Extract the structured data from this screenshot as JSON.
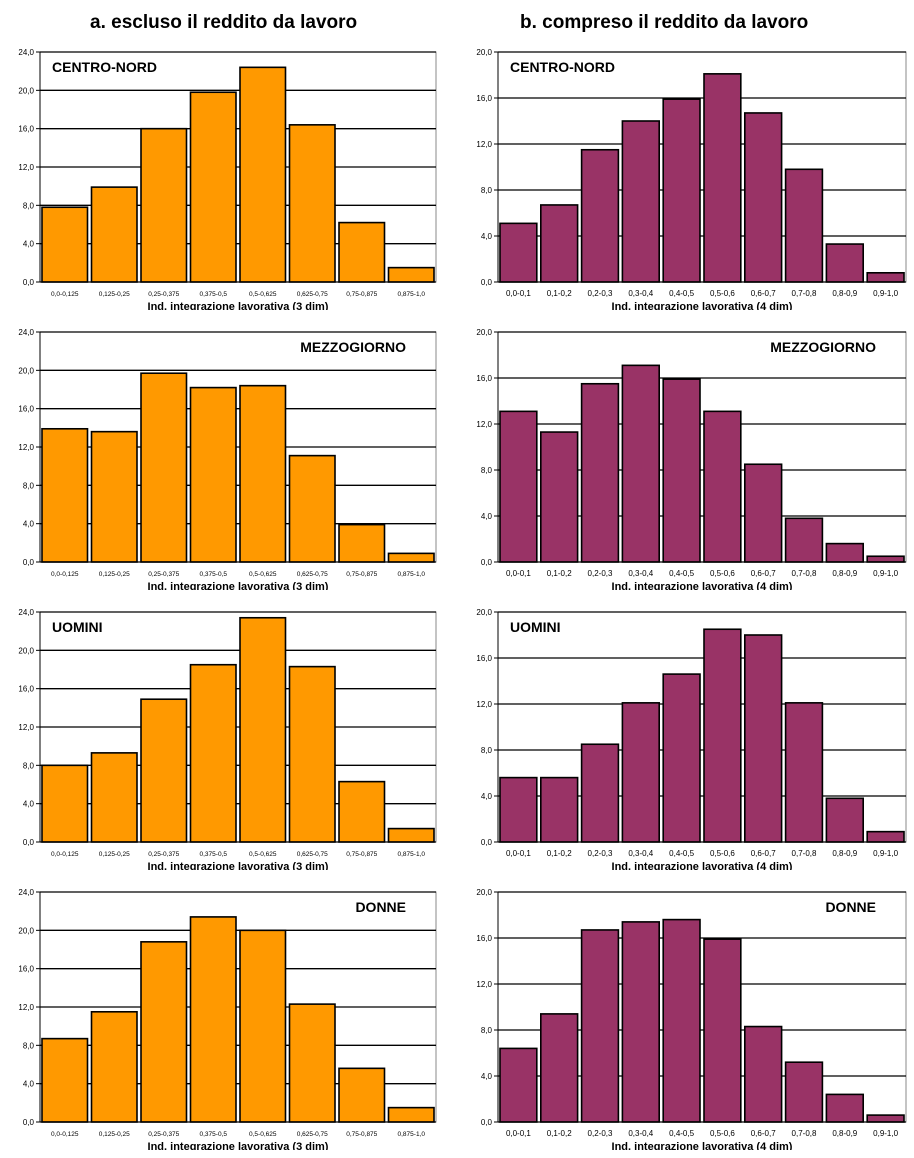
{
  "columns": {
    "a_title": "a. escluso il reddito da lavoro",
    "b_title": "b. compreso il reddito da lavoro"
  },
  "colors": {
    "orange": "#FF9900",
    "purple": "#993366",
    "outline": "#000000"
  },
  "chart_data": [
    {
      "type": "bar",
      "title": "CENTRO-NORD",
      "xlabel": "Ind. integrazione lavorativa (3 dim)",
      "ylabel": "",
      "ylim": [
        0,
        24
      ],
      "yticks": [
        "0,0",
        "4,0",
        "8,0",
        "12,0",
        "16,0",
        "20,0",
        "24,0"
      ],
      "categories": [
        "0,0-0,125",
        "0,125-0,25",
        "0,25-0,375",
        "0,375-0,5",
        "0,5-0,625",
        "0,625-0,75",
        "0,75-0,875",
        "0,875-1,0"
      ],
      "values": [
        7.8,
        9.9,
        16.0,
        19.8,
        22.4,
        16.4,
        6.2,
        1.5
      ],
      "color": "#FF9900",
      "title_position": "top-left",
      "grid": true
    },
    {
      "type": "bar",
      "title": "CENTRO-NORD",
      "xlabel": "Ind. integrazione lavorativa (4 dim)",
      "ylabel": "",
      "ylim": [
        0,
        20
      ],
      "yticks": [
        "0,0",
        "4,0",
        "8,0",
        "12,0",
        "16,0",
        "20,0"
      ],
      "categories": [
        "0,0-0,1",
        "0,1-0,2",
        "0,2-0,3",
        "0,3-0,4",
        "0,4-0,5",
        "0,5-0,6",
        "0,6-0,7",
        "0,7-0,8",
        "0,8-0,9",
        "0,9-1,0"
      ],
      "values": [
        5.1,
        6.7,
        11.5,
        14.0,
        15.9,
        18.1,
        14.7,
        9.8,
        3.3,
        0.8
      ],
      "color": "#993366",
      "title_position": "top-left",
      "grid": true
    },
    {
      "type": "bar",
      "title": "MEZZOGIORNO",
      "xlabel": "Ind. integrazione lavorativa (3 dim)",
      "ylabel": "",
      "ylim": [
        0,
        24
      ],
      "yticks": [
        "0,0",
        "4,0",
        "8,0",
        "12,0",
        "16,0",
        "20,0",
        "24,0"
      ],
      "categories": [
        "0,0-0,125",
        "0,125-0,25",
        "0,25-0,375",
        "0,375-0,5",
        "0,5-0,625",
        "0,625-0,75",
        "0,75-0,875",
        "0,875-1,0"
      ],
      "values": [
        13.9,
        13.6,
        19.7,
        18.2,
        18.4,
        11.1,
        3.9,
        0.9
      ],
      "color": "#FF9900",
      "title_position": "top-right",
      "grid": true
    },
    {
      "type": "bar",
      "title": "MEZZOGIORNO",
      "xlabel": "Ind. integrazione lavorativa (4 dim)",
      "ylabel": "",
      "ylim": [
        0,
        20
      ],
      "yticks": [
        "0,0",
        "4,0",
        "8,0",
        "12,0",
        "16,0",
        "20,0"
      ],
      "categories": [
        "0,0-0,1",
        "0,1-0,2",
        "0,2-0,3",
        "0,3-0,4",
        "0,4-0,5",
        "0,5-0,6",
        "0,6-0,7",
        "0,7-0,8",
        "0,8-0,9",
        "0,9-1,0"
      ],
      "values": [
        13.1,
        11.3,
        15.5,
        17.1,
        15.9,
        13.1,
        8.5,
        3.8,
        1.6,
        0.5
      ],
      "color": "#993366",
      "title_position": "top-right",
      "grid": true
    },
    {
      "type": "bar",
      "title": "UOMINI",
      "xlabel": "Ind. integrazione lavorativa (3 dim)",
      "ylabel": "",
      "ylim": [
        0,
        24
      ],
      "yticks": [
        "0,0",
        "4,0",
        "8,0",
        "12,0",
        "16,0",
        "20,0",
        "24,0"
      ],
      "categories": [
        "0,0-0,125",
        "0,125-0,25",
        "0,25-0,375",
        "0,375-0,5",
        "0,5-0,625",
        "0,625-0,75",
        "0,75-0,875",
        "0,875-1,0"
      ],
      "values": [
        8.0,
        9.3,
        14.9,
        18.5,
        23.4,
        18.3,
        6.3,
        1.4
      ],
      "color": "#FF9900",
      "title_position": "top-left",
      "grid": true
    },
    {
      "type": "bar",
      "title": "UOMINI",
      "xlabel": "Ind. integrazione lavorativa (4 dim)",
      "ylabel": "",
      "ylim": [
        0,
        20
      ],
      "yticks": [
        "0,0",
        "4,0",
        "8,0",
        "12,0",
        "16,0",
        "20,0"
      ],
      "categories": [
        "0,0-0,1",
        "0,1-0,2",
        "0,2-0,3",
        "0,3-0,4",
        "0,4-0,5",
        "0,5-0,6",
        "0,6-0,7",
        "0,7-0,8",
        "0,8-0,9",
        "0,9-1,0"
      ],
      "values": [
        5.6,
        5.6,
        8.5,
        12.1,
        14.6,
        18.5,
        18.0,
        12.1,
        3.8,
        0.9
      ],
      "color": "#993366",
      "title_position": "top-left",
      "grid": true
    },
    {
      "type": "bar",
      "title": "DONNE",
      "xlabel": "Ind. integrazione lavorativa (3 dim)",
      "ylabel": "",
      "ylim": [
        0,
        24
      ],
      "yticks": [
        "0,0",
        "4,0",
        "8,0",
        "12,0",
        "16,0",
        "20,0",
        "24,0"
      ],
      "categories": [
        "0,0-0,125",
        "0,125-0,25",
        "0,25-0,375",
        "0,375-0,5",
        "0,5-0,625",
        "0,625-0,75",
        "0,75-0,875",
        "0,875-1,0"
      ],
      "values": [
        8.7,
        11.5,
        18.8,
        21.4,
        20.0,
        12.3,
        5.6,
        1.5
      ],
      "color": "#FF9900",
      "title_position": "top-right",
      "grid": true
    },
    {
      "type": "bar",
      "title": "DONNE",
      "xlabel": "Ind. integrazione lavorativa (4 dim)",
      "ylabel": "",
      "ylim": [
        0,
        20
      ],
      "yticks": [
        "0,0",
        "4,0",
        "8,0",
        "12,0",
        "16,0",
        "20,0"
      ],
      "categories": [
        "0,0-0,1",
        "0,1-0,2",
        "0,2-0,3",
        "0,3-0,4",
        "0,4-0,5",
        "0,5-0,6",
        "0,6-0,7",
        "0,7-0,8",
        "0,8-0,9",
        "0,9-1,0"
      ],
      "values": [
        6.4,
        9.4,
        16.7,
        17.4,
        17.6,
        15.9,
        8.3,
        5.2,
        2.4,
        0.6
      ],
      "color": "#993366",
      "title_position": "top-right",
      "grid": true
    }
  ]
}
